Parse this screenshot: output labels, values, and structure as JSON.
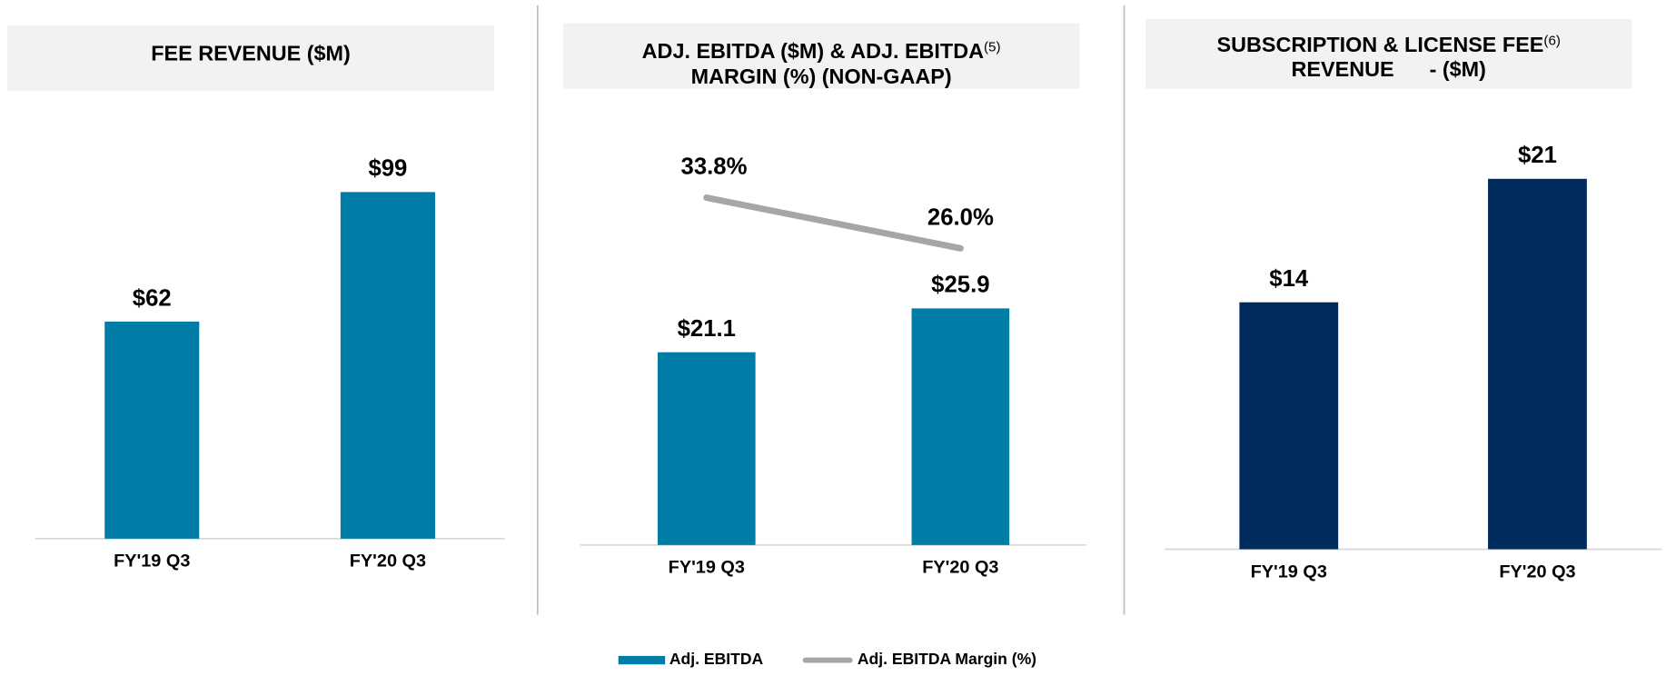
{
  "chart_data": [
    {
      "type": "bar",
      "title": "FEE REVENUE ($M)",
      "categories": [
        "FY'19 Q3",
        "FY'20 Q3"
      ],
      "values": [
        62,
        99
      ],
      "value_labels": [
        "$62",
        "$99"
      ],
      "color": "#007da6"
    },
    {
      "type": "bar_line",
      "title_lines": [
        "ADJ. EBITDA ($M) & ADJ. EBITDA",
        "MARGIN (%) (NON-GAAP)"
      ],
      "title_note": "(5)",
      "categories": [
        "FY'19 Q3",
        "FY'20 Q3"
      ],
      "series": [
        {
          "name": "Adj. EBITDA",
          "color": "#007da6",
          "values": [
            21.1,
            25.9
          ],
          "value_labels": [
            "$21.1",
            "$25.9"
          ]
        },
        {
          "name": "Adj. EBITDA Margin (%)",
          "color": "#a6a6a6",
          "values": [
            33.8,
            26.0
          ],
          "value_labels": [
            "33.8%",
            "26.0%"
          ]
        }
      ]
    },
    {
      "type": "bar",
      "title_lines": [
        "SUBSCRIPTION & LICENSE FEE",
        "REVENUE      - ($M)"
      ],
      "title_note": "(6)",
      "categories": [
        "FY'19 Q3",
        "FY'20 Q3"
      ],
      "values": [
        14,
        21
      ],
      "value_labels": [
        "$14",
        "$21"
      ],
      "color": "#002b5c"
    }
  ]
}
